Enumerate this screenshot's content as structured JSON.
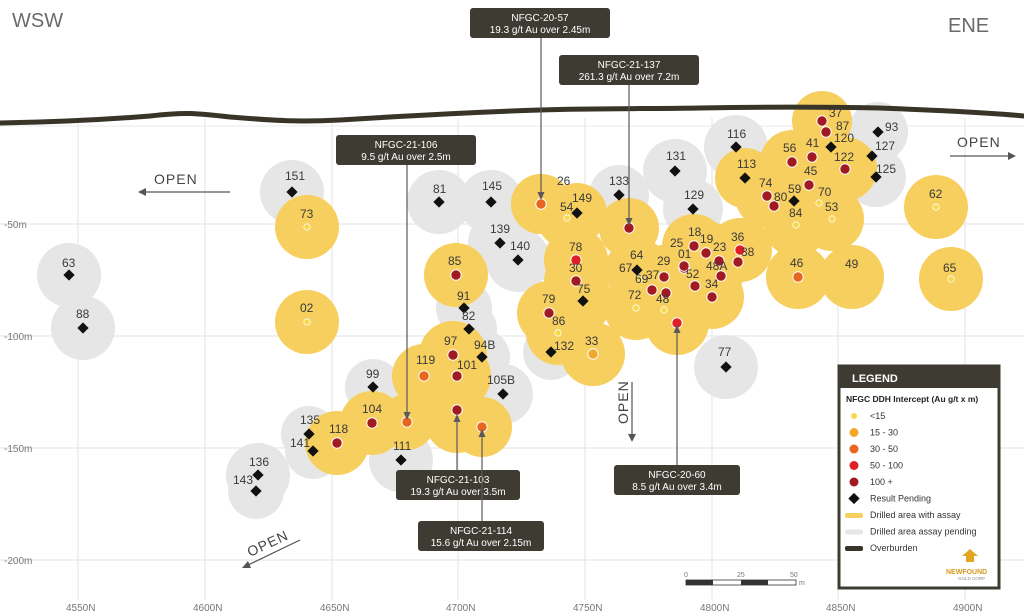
{
  "direction_left": "WSW",
  "direction_right": "ENE",
  "open_label": "OPEN",
  "depth_labels": [
    "-50m",
    "-100m",
    "-150m",
    "-200m"
  ],
  "northing_labels": [
    "4550N",
    "4600N",
    "4650N",
    "4700N",
    "4750N",
    "4800N",
    "4850N",
    "4900N"
  ],
  "colors": {
    "assay_zone": "#f7cf5e",
    "pending_zone": "#e6e6e6",
    "overburden": "#383428",
    "callout": "#3e3b32",
    "lt15": "#f7d84a",
    "c15_30": "#f2a92b",
    "c30_50": "#e8661e",
    "c50_100": "#de1f26",
    "c100": "#a11a22",
    "pending": "#111111"
  },
  "grade_legend": [
    "<15",
    "15 - 30",
    "30 - 50",
    "50 - 100",
    "100 +"
  ],
  "holes": [
    {
      "label": "63",
      "grade": "pending"
    },
    {
      "label": "88",
      "grade": "pending"
    },
    {
      "label": "151",
      "grade": "pending"
    },
    {
      "label": "73",
      "grade": "lt15"
    },
    {
      "label": "02",
      "grade": "lt15"
    },
    {
      "label": "81",
      "grade": "pending"
    },
    {
      "label": "145",
      "grade": "pending"
    },
    {
      "label": "139",
      "grade": "pending"
    },
    {
      "label": "140",
      "grade": "pending"
    },
    {
      "label": "85",
      "grade": "c100"
    },
    {
      "label": "91",
      "grade": "pending"
    },
    {
      "label": "82",
      "grade": "pending"
    },
    {
      "label": "97",
      "grade": "c100"
    },
    {
      "label": "101",
      "grade": "c100"
    },
    {
      "label": "94B",
      "grade": "pending"
    },
    {
      "label": "105B",
      "grade": "pending"
    },
    {
      "label": "119",
      "grade": "c30_50"
    },
    {
      "label": "99",
      "grade": "pending"
    },
    {
      "label": "104",
      "grade": "c100"
    },
    {
      "label": "135",
      "grade": "pending"
    },
    {
      "label": "141",
      "grade": "pending"
    },
    {
      "label": "118",
      "grade": "c100"
    },
    {
      "label": "111",
      "grade": "pending"
    },
    {
      "label": "136",
      "grade": "pending"
    },
    {
      "label": "143",
      "grade": "pending"
    },
    {
      "label": "26",
      "grade": "c100"
    },
    {
      "label": "54",
      "grade": "lt15"
    },
    {
      "label": "149",
      "grade": "pending"
    },
    {
      "label": "133",
      "grade": "pending"
    },
    {
      "label": "131",
      "grade": "pending"
    },
    {
      "label": "129",
      "grade": "pending"
    },
    {
      "label": "116",
      "grade": "pending"
    },
    {
      "label": "113",
      "grade": "pending"
    },
    {
      "label": "78",
      "grade": "c50_100"
    },
    {
      "label": "30",
      "grade": "c100"
    },
    {
      "label": "75",
      "grade": "pending"
    },
    {
      "label": "79",
      "grade": "c100"
    },
    {
      "label": "86",
      "grade": "lt15"
    },
    {
      "label": "132",
      "grade": "pending"
    },
    {
      "label": "33",
      "grade": "c15_30"
    },
    {
      "label": "64",
      "grade": "pending"
    },
    {
      "label": "67",
      "grade": "lt15"
    },
    {
      "label": "69",
      "grade": "c100"
    },
    {
      "label": "72",
      "grade": "lt15"
    },
    {
      "label": "29",
      "grade": "c100"
    },
    {
      "label": "37",
      "grade": "c100"
    },
    {
      "label": "48",
      "grade": "lt15"
    },
    {
      "label": "18",
      "grade": "c100"
    },
    {
      "label": "25",
      "grade": "c100"
    },
    {
      "label": "19",
      "grade": "c100"
    },
    {
      "label": "01",
      "grade": "c100"
    },
    {
      "label": "52",
      "grade": "c100"
    },
    {
      "label": "23",
      "grade": "c100"
    },
    {
      "label": "48A",
      "grade": "c100"
    },
    {
      "label": "34",
      "grade": "c100"
    },
    {
      "label": "36",
      "grade": "c50_100"
    },
    {
      "label": "38",
      "grade": "c100"
    },
    {
      "label": "46",
      "grade": "c30_50"
    },
    {
      "label": "49",
      "grade": "none"
    },
    {
      "label": "56",
      "grade": "c100"
    },
    {
      "label": "74",
      "grade": "c100"
    },
    {
      "label": "80",
      "grade": "c100"
    },
    {
      "label": "59",
      "grade": "pending"
    },
    {
      "label": "84",
      "grade": "lt15"
    },
    {
      "label": "41",
      "grade": "c100"
    },
    {
      "label": "45",
      "grade": "c100"
    },
    {
      "label": "70",
      "grade": "lt15"
    },
    {
      "label": "53",
      "grade": "lt15"
    },
    {
      "label": "37",
      "grade": "c100"
    },
    {
      "label": "87",
      "grade": "c100"
    },
    {
      "label": "120",
      "grade": "pending"
    },
    {
      "label": "122",
      "grade": "c100"
    },
    {
      "label": "93",
      "grade": "pending"
    },
    {
      "label": "127",
      "grade": "pending"
    },
    {
      "label": "125",
      "grade": "pending"
    },
    {
      "label": "62",
      "grade": "lt15"
    },
    {
      "label": "65",
      "grade": "lt15"
    },
    {
      "label": "77",
      "grade": "pending"
    }
  ],
  "callouts": [
    {
      "hole": "NFGC-20-57",
      "text": "19.3 g/t Au over 2.45m"
    },
    {
      "hole": "NFGC-21-137",
      "text": "261.3 g/t Au over 7.2m"
    },
    {
      "hole": "NFGC-21-106",
      "text": "9.5 g/t Au over 2.5m"
    },
    {
      "hole": "NFGC-21-103",
      "text": "19.3 g/t Au over 3.5m"
    },
    {
      "hole": "NFGC-21-114",
      "text": "15.6 g/t Au over 2.15m"
    },
    {
      "hole": "NFGC-20-60",
      "text": "8.5 g/t Au over 3.4m"
    }
  ],
  "legend": {
    "title": "LEGEND",
    "subtitle": "NFGC DDH Intercept (Au g/t x m)",
    "items": [
      "<15",
      "15 - 30",
      "30 - 50",
      "50 - 100",
      "100 +",
      "Result Pending",
      "Drilled area with assay",
      "Drilled area assay pending",
      "Overburden"
    ]
  },
  "scale": {
    "ticks": [
      "0",
      "25",
      "50"
    ],
    "unit": "m"
  },
  "logo": {
    "name": "NEWFOUND",
    "sub": "GOLD CORP"
  }
}
